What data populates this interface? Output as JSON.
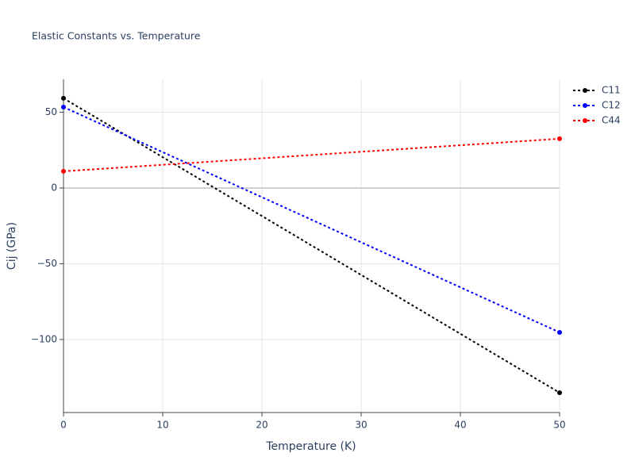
{
  "chart_data": {
    "type": "line",
    "title": "Elastic Constants vs. Temperature",
    "x_label": "Temperature (K)",
    "y_label": "Cij (GPa)",
    "x": [
      0,
      50
    ],
    "series": [
      {
        "name": "C11",
        "color": "#000000",
        "values": [
          59.2,
          -135.1
        ]
      },
      {
        "name": "C12",
        "color": "#0000ff",
        "values": [
          53.4,
          -95.3
        ]
      },
      {
        "name": "C44",
        "color": "#ff0000",
        "values": [
          11.0,
          32.5
        ]
      }
    ],
    "xlim": [
      0,
      50
    ],
    "xticks": [
      0,
      10,
      20,
      30,
      40,
      50
    ],
    "ylim": [
      -148.2,
      71.7
    ],
    "yticks": [
      {
        "value": -100,
        "label": "−100"
      },
      {
        "value": -50,
        "label": "−50"
      },
      0,
      50
    ],
    "grid": true,
    "legend": "top-right"
  }
}
